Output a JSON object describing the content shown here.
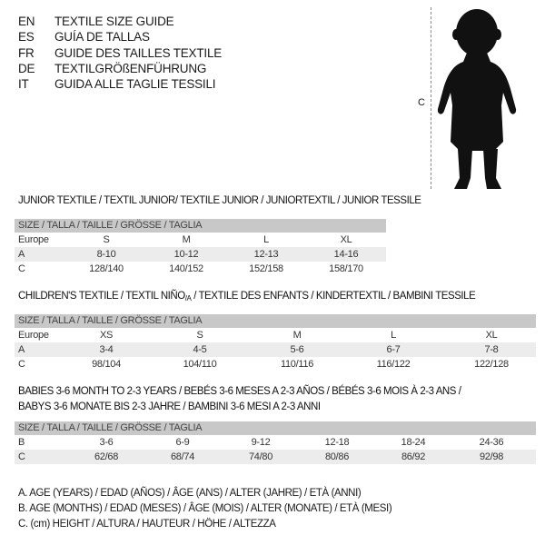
{
  "languages": [
    {
      "code": "EN",
      "title": "TEXTILE SIZE GUIDE"
    },
    {
      "code": "ES",
      "title": "GUÍA DE TALLAS"
    },
    {
      "code": "FR",
      "title": "GUIDE DES TAILLES TEXTILE"
    },
    {
      "code": "DE",
      "title": "TEXTILGRÖßENFÜHRUNG"
    },
    {
      "code": "IT",
      "title": "GUIDA ALLE TAGLIE TESSILI"
    }
  ],
  "figure": {
    "measure_label": "C",
    "icon": "child-silhouette"
  },
  "size_header": "SIZE / TALLA / TAILLE / GRÖSSE / TAGLIA",
  "junior": {
    "title": "JUNIOR TEXTILE / TEXTIL JUNIOR/ TEXTILE JUNIOR / JUNIORTEXTIL / JUNIOR TESSILE",
    "rows": [
      {
        "label": "Europe",
        "values": [
          "S",
          "M",
          "L",
          "XL"
        ]
      },
      {
        "label": "A",
        "values": [
          "8-10",
          "10-12",
          "12-13",
          "14-16"
        ]
      },
      {
        "label": "C",
        "values": [
          "128/140",
          "140/152",
          "152/158",
          "158/170"
        ]
      }
    ]
  },
  "children": {
    "title": "CHILDREN'S TEXTILE / TEXTIL NIÑO",
    "title_sub": "/A",
    "title_rest": " / TEXTILE DES ENFANTS / KINDERTEXTIL / BAMBINI TESSILE",
    "rows": [
      {
        "label": "Europe",
        "values": [
          "XS",
          "S",
          "M",
          "L",
          "XL"
        ]
      },
      {
        "label": "A",
        "values": [
          "3-4",
          "4-5",
          "5-6",
          "6-7",
          "7-8"
        ]
      },
      {
        "label": "C",
        "values": [
          "98/104",
          "104/110",
          "110/116",
          "116/122",
          "122/128"
        ]
      }
    ]
  },
  "babies": {
    "title_line1": "BABIES 3-6 MONTH TO 2-3 YEARS / BEBÉS 3-6 MESES A 2-3 AÑOS / BÉBÉS 3-6 MOIS À 2-3 ANS /",
    "title_line2": "BABYS 3-6 MONATE BIS 2-3 JAHRE / BAMBINI 3-6 MESI A 2-3 ANNI",
    "rows": [
      {
        "label": "B",
        "values": [
          "3-6",
          "6-9",
          "9-12",
          "12-18",
          "18-24",
          "24-36"
        ]
      },
      {
        "label": "C",
        "values": [
          "62/68",
          "68/74",
          "74/80",
          "80/86",
          "86/92",
          "92/98"
        ]
      }
    ]
  },
  "legend": [
    "A. AGE (YEARS) / EDAD (AÑOS) / ÂGE (ANS) / ALTER (JAHRE) / ETÀ (ANNI)",
    "B. AGE (MONTHS) / EDAD (MESES) / ÂGE (MOIS) / ALTER (MONATE) / ETÀ (MESI)",
    "C. (cm) HEIGHT / ALTURA / HAUTEUR / HÖHE / ALTEZZA"
  ]
}
